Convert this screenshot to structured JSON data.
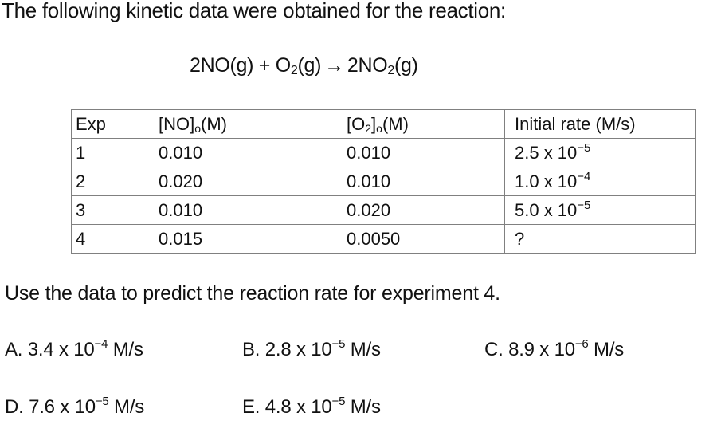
{
  "intro_text": "The following kinetic data were obtained for the reaction:",
  "equation": {
    "reactant1": "2NO(g) + O",
    "reactant1_sub": "2",
    "reactant1_tail": "(g)",
    "arrow": "→",
    "product": "2NO",
    "product_sub": "2",
    "product_tail": "(g)"
  },
  "table": {
    "headers": {
      "exp": "Exp",
      "no_conc_main": "[NO]",
      "no_conc_sub": "o",
      "no_conc_unit": "(M)",
      "o2_conc_main": "[O",
      "o2_conc_sub1": "2",
      "o2_conc_mid": "]",
      "o2_conc_sub2": "o",
      "o2_conc_unit": "(M)",
      "rate": "Initial rate (M/s)"
    },
    "rows": [
      {
        "exp": "1",
        "no": "0.010",
        "o2": "0.010",
        "rate_base": "2.5 x 10",
        "rate_exp": "−5"
      },
      {
        "exp": "2",
        "no": "0.020",
        "o2": "0.010",
        "rate_base": "1.0 x 10",
        "rate_exp": "−4"
      },
      {
        "exp": "3",
        "no": "0.010",
        "o2": "0.020",
        "rate_base": "5.0 x 10",
        "rate_exp": "−5"
      },
      {
        "exp": "4",
        "no": "0.015",
        "o2": "0.0050",
        "rate_base": "?",
        "rate_exp": ""
      }
    ]
  },
  "prompt": "Use the data to predict the reaction rate for experiment 4.",
  "choices": [
    {
      "label": "A. 3.4 x 10",
      "exp": "−4",
      "unit": " M/s"
    },
    {
      "label": "B. 2.8 x 10",
      "exp": "−5",
      "unit": " M/s"
    },
    {
      "label": "C. 8.9 x 10",
      "exp": "−6",
      "unit": " M/s"
    },
    {
      "label": "D. 7.6 x 10",
      "exp": "−5",
      "unit": " M/s"
    },
    {
      "label": "E. 4.8 x 10",
      "exp": "−5",
      "unit": " M/s"
    }
  ]
}
